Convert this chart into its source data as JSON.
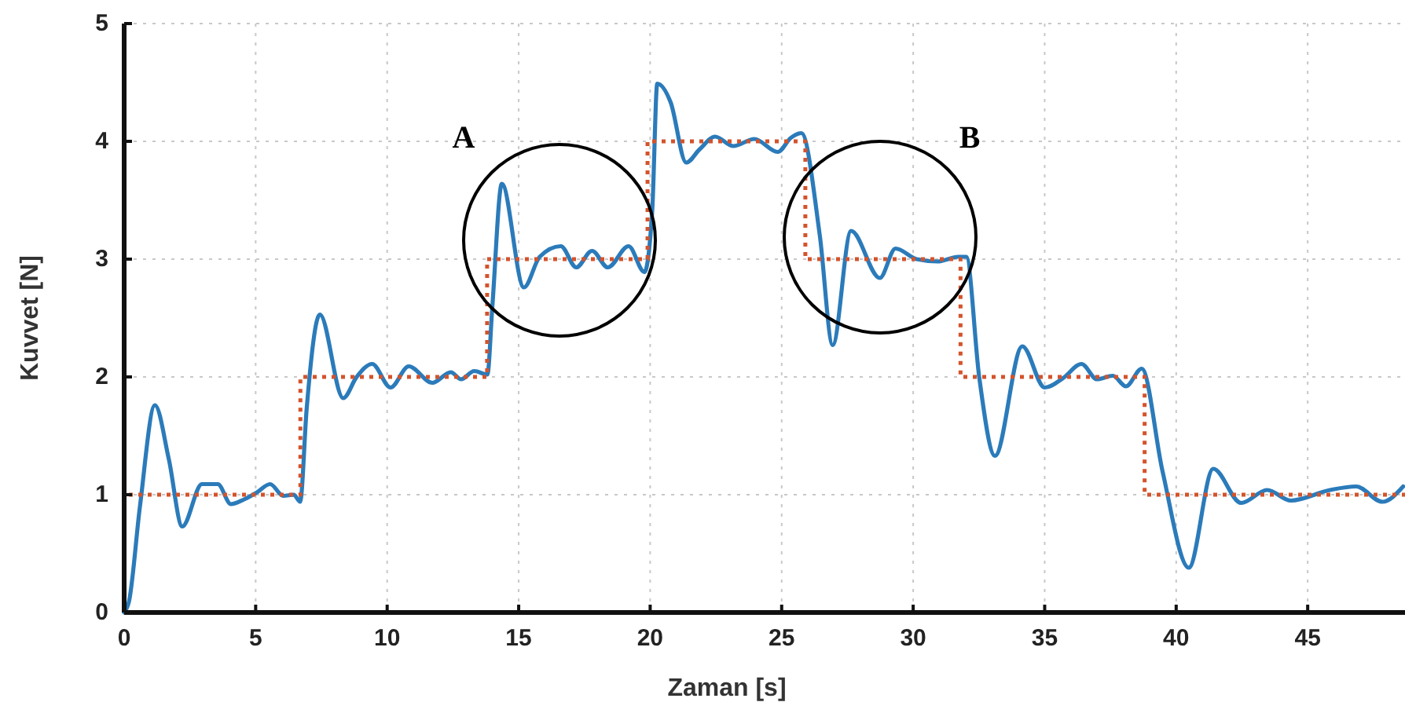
{
  "chart_data": {
    "type": "line",
    "xlabel": "Zaman [s]",
    "ylabel": "Kuvvet [N]",
    "xlim": [
      0,
      48.7
    ],
    "ylim": [
      0,
      5
    ],
    "xticks": [
      0,
      5,
      10,
      15,
      20,
      25,
      30,
      35,
      40,
      45
    ],
    "yticks": [
      0,
      1,
      2,
      3,
      4,
      5
    ],
    "grid": true,
    "marker": "none",
    "series": [
      {
        "color": "#2b7bba",
        "line_style": "solid",
        "x": [
          0,
          0.18,
          0.6,
          1.17,
          1.7,
          2.21,
          2.96,
          3.56,
          4.06,
          4.56,
          5.05,
          5.55,
          6.05,
          6.45,
          6.69,
          6.94,
          7.44,
          8.33,
          8.84,
          9.43,
          10.13,
          10.82,
          11.72,
          12.42,
          12.81,
          13.31,
          13.81,
          14.0,
          14.36,
          15.2,
          15.8,
          16.6,
          17.19,
          17.79,
          18.39,
          19.18,
          19.78,
          20.08,
          20.27,
          20.78,
          21.37,
          21.87,
          22.47,
          23.16,
          23.96,
          24.85,
          25.35,
          25.75,
          26.45,
          26.94,
          27.64,
          28.73,
          29.33,
          30.13,
          30.93,
          31.72,
          32.02,
          32.51,
          33.11,
          34.15,
          35.0,
          35.7,
          36.4,
          36.99,
          37.59,
          38.09,
          38.69,
          39.48,
          40.48,
          41.41,
          42.47,
          43.46,
          44.36,
          45.85,
          46.84,
          47.84,
          48.63
        ],
        "values": [
          0,
          0.09,
          0.9,
          1.76,
          1.3,
          0.73,
          1.09,
          1.09,
          0.92,
          0.96,
          1.02,
          1.09,
          0.99,
          1.0,
          0.94,
          1.73,
          2.53,
          1.82,
          2.0,
          2.11,
          1.91,
          2.09,
          1.95,
          2.04,
          1.98,
          2.05,
          2.02,
          2.6,
          3.64,
          2.76,
          3.02,
          3.11,
          2.93,
          3.07,
          2.93,
          3.11,
          2.89,
          3.42,
          4.49,
          4.33,
          3.82,
          3.93,
          4.04,
          3.96,
          4.02,
          3.91,
          4.03,
          4.07,
          3.2,
          2.27,
          3.24,
          2.84,
          3.09,
          3.0,
          2.98,
          3.02,
          3.02,
          2.0,
          1.33,
          2.26,
          1.91,
          1.99,
          2.11,
          1.98,
          2.01,
          1.92,
          2.07,
          1.2,
          0.38,
          1.22,
          0.93,
          1.04,
          0.95,
          1.04,
          1.07,
          0.94,
          1.07
        ]
      },
      {
        "type": "step",
        "color": "#d4532b",
        "line_style": "dotted",
        "x": [
          0,
          0,
          6.7,
          13.8,
          19.9,
          25.9,
          31.8,
          38.8,
          48.7
        ],
        "values": [
          0,
          1,
          2,
          3,
          4,
          3,
          2,
          1,
          1
        ]
      }
    ],
    "annotations": [
      "A",
      "B"
    ]
  }
}
